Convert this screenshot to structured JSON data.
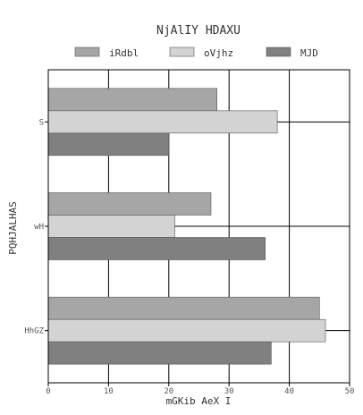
{
  "chart_data": {
    "type": "bar",
    "orientation": "horizontal",
    "title": "NjAlIY HDAXU",
    "xlabel": "mGKib AeX I",
    "ylabel": "PQHJALHAS",
    "categories": [
      "S",
      "wH",
      "HhGZ"
    ],
    "xlim": [
      0,
      50
    ],
    "xticks": [
      0,
      10,
      20,
      30,
      40,
      50
    ],
    "grid": true,
    "legend_position": "top",
    "series": [
      {
        "name": "iRdbl",
        "color": "#a6a6a6",
        "values": [
          28,
          27,
          45
        ]
      },
      {
        "name": "oVjhz",
        "color": "#d3d3d3",
        "values": [
          38,
          21,
          46
        ]
      },
      {
        "name": "MJD",
        "color": "#808080",
        "values": [
          20,
          36,
          37
        ]
      }
    ]
  }
}
